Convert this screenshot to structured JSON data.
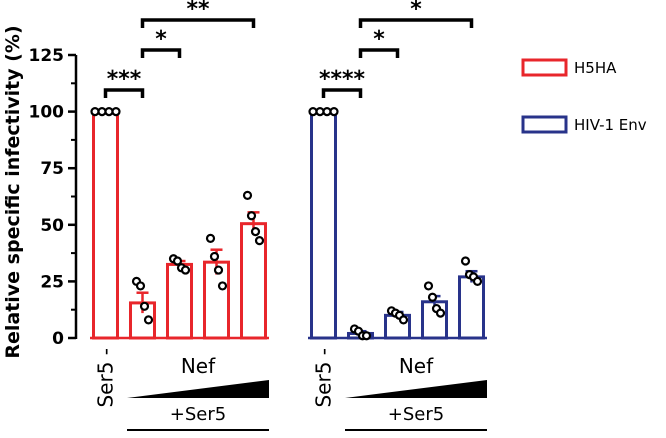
{
  "chart_data": {
    "type": "bar",
    "ylabel": "Relative specific infectivity (%)",
    "ylim": [
      0,
      125
    ],
    "yticks": [
      0,
      25,
      50,
      75,
      100,
      125
    ],
    "legend_position": "top-right",
    "series": [
      {
        "name": "H5HA",
        "color": "#e8262b",
        "values": [
          100,
          15.5,
          32.5,
          33.5,
          50.5
        ],
        "errors": [
          0,
          4.5,
          1.5,
          5.5,
          5.0
        ],
        "points": [
          [
            100,
            100,
            100,
            100
          ],
          [
            25,
            23,
            14,
            8
          ],
          [
            35,
            34,
            31,
            30
          ],
          [
            44,
            36,
            30,
            23
          ],
          [
            63,
            54,
            47,
            43
          ]
        ]
      },
      {
        "name": "HIV-1 Env",
        "color": "#28338a",
        "values": [
          100,
          2,
          10,
          16,
          27
        ],
        "errors": [
          0,
          1,
          1.5,
          2.5,
          2.5
        ],
        "points": [
          [
            100,
            100,
            100,
            100
          ],
          [
            4,
            3,
            1,
            1
          ],
          [
            12,
            11,
            10,
            8
          ],
          [
            23,
            18,
            13,
            11
          ],
          [
            34,
            28,
            27,
            25
          ]
        ]
      }
    ],
    "group_labels": {
      "ser5_minus": "Ser5 -",
      "nef": "Nef",
      "plus_ser5": "+Ser5"
    },
    "significance": [
      {
        "series": 0,
        "from": 0,
        "to": 1,
        "label": "***"
      },
      {
        "series": 0,
        "from": 1,
        "to": 2,
        "label": "*"
      },
      {
        "series": 0,
        "from": 1,
        "to": 4,
        "label": "**"
      },
      {
        "series": 1,
        "from": 0,
        "to": 1,
        "label": "****"
      },
      {
        "series": 1,
        "from": 1,
        "to": 2,
        "label": "*"
      },
      {
        "series": 1,
        "from": 1,
        "to": 4,
        "label": "*"
      }
    ]
  }
}
